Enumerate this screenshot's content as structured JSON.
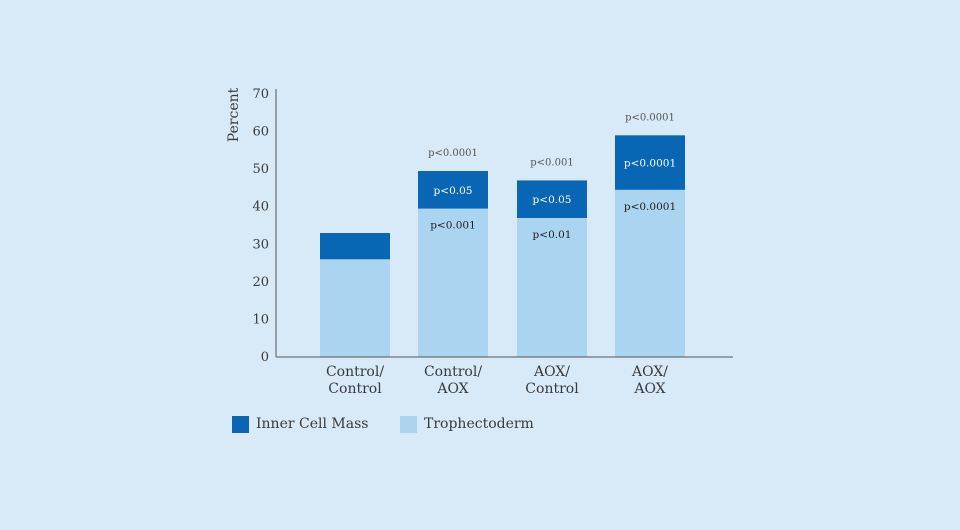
{
  "chart_data": {
    "type": "bar",
    "stacked": true,
    "title": "",
    "xlabel": "",
    "ylabel": "Percent",
    "ylim": [
      0,
      70
    ],
    "yticks": [
      0,
      10,
      20,
      30,
      40,
      50,
      60,
      70
    ],
    "categories": [
      [
        "Control/",
        "Control"
      ],
      [
        "Control/",
        "AOX"
      ],
      [
        "AOX/",
        "Control"
      ],
      [
        "AOX/",
        "AOX"
      ]
    ],
    "series": [
      {
        "name": "Trophectoderm",
        "color": "#abd4f0",
        "values": [
          26,
          39.5,
          37,
          44.5
        ],
        "labels": [
          "",
          "p<0.001",
          "p<0.01",
          "p<0.0001"
        ]
      },
      {
        "name": "Inner Cell Mass",
        "color": "#0866b4",
        "values": [
          7,
          10,
          10,
          14.5
        ],
        "labels": [
          "",
          "p<0.05",
          "p<0.05",
          "p<0.0001"
        ]
      }
    ],
    "annotations_above": [
      "",
      "p<0.0001",
      "p<0.001",
      "p<0.0001"
    ],
    "legend": {
      "position": "bottom-left",
      "order": [
        "Inner Cell Mass",
        "Trophectoderm"
      ]
    },
    "grid": false
  }
}
